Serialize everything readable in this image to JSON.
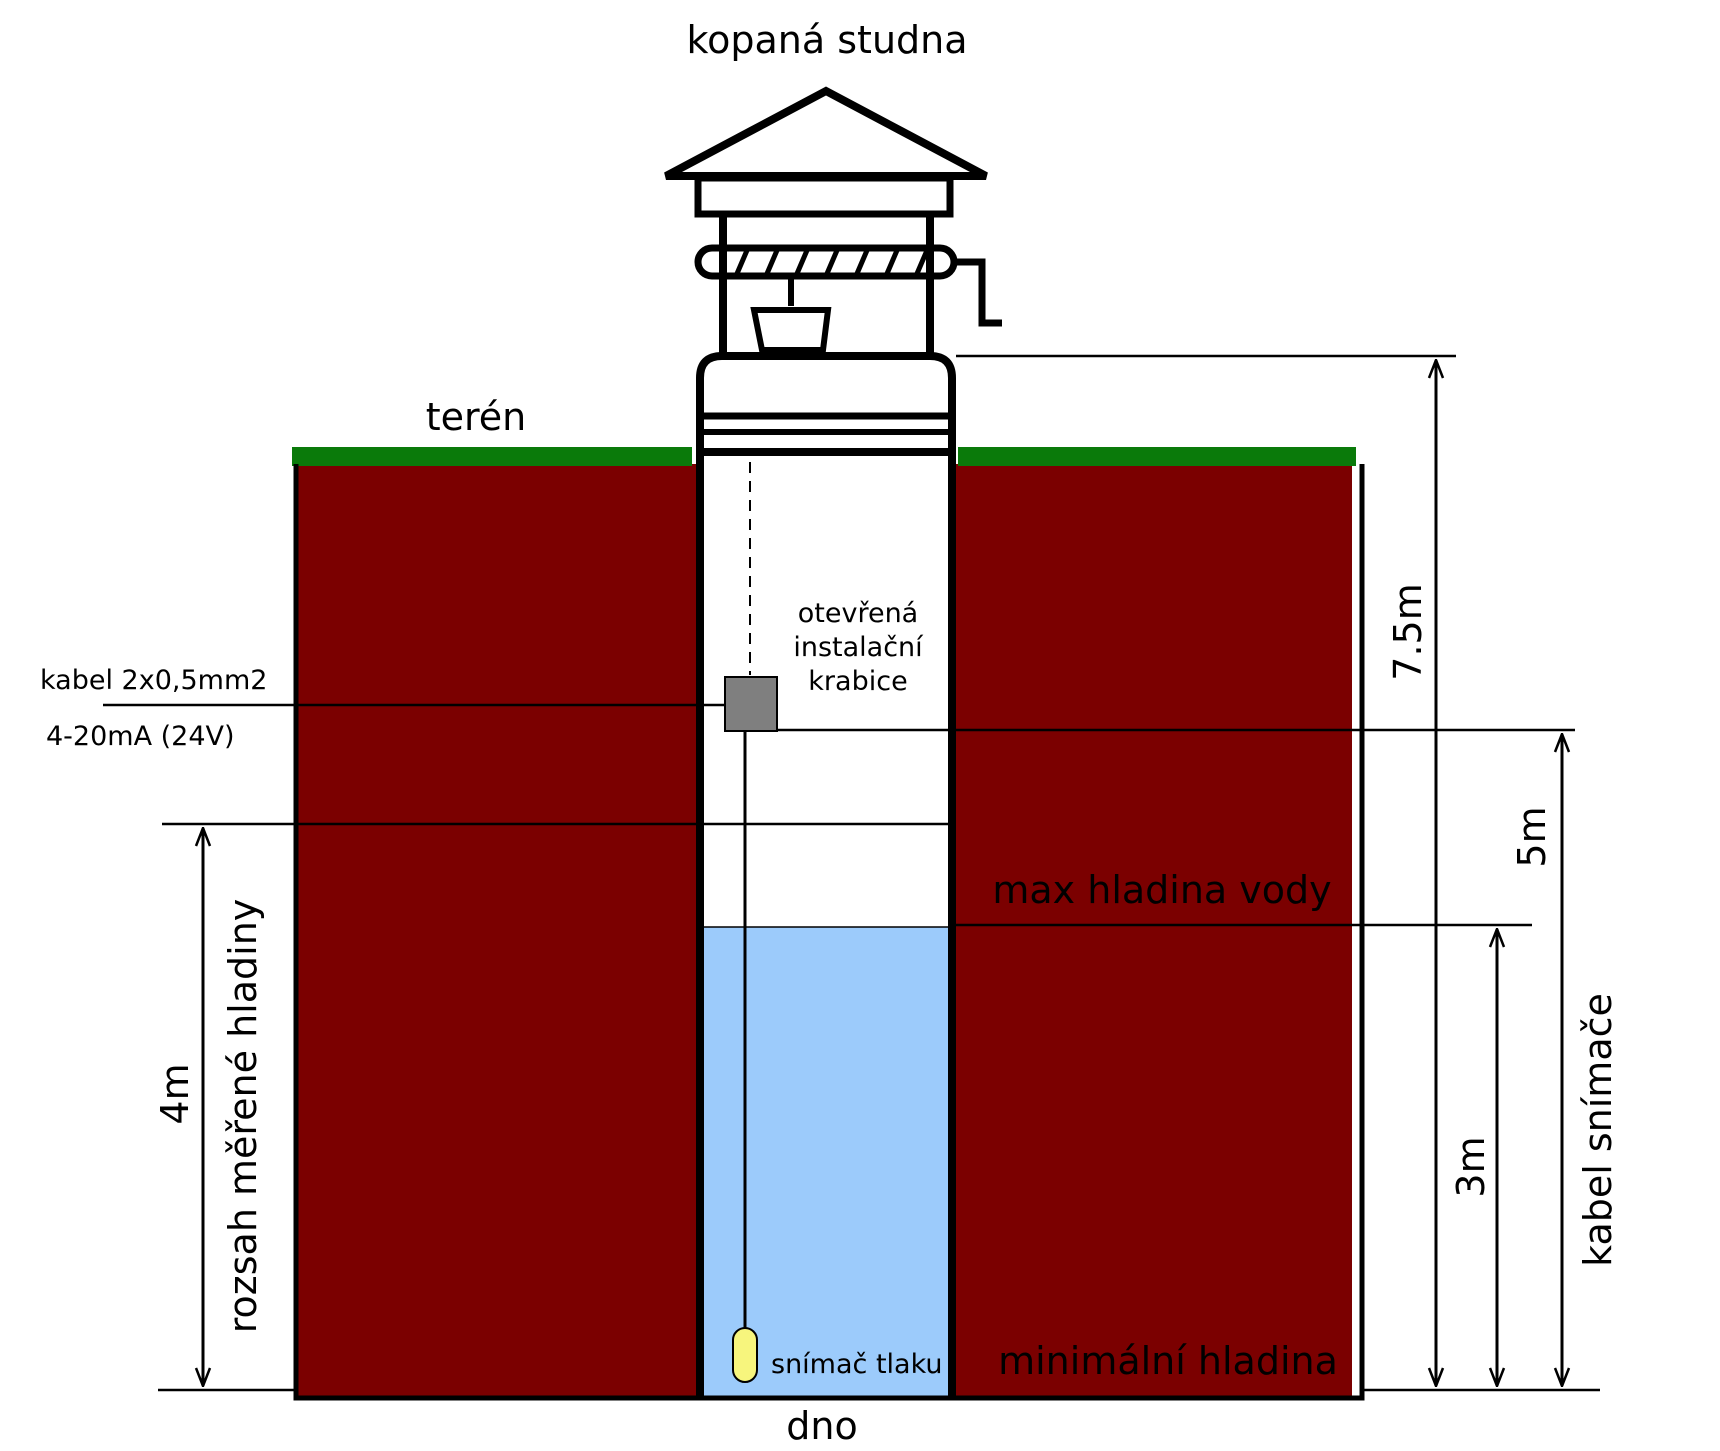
{
  "title": "kopaná studna",
  "labels": {
    "terrain": "terén",
    "bottom": "dno",
    "max_level": "max hladina vody",
    "min_level": "minimální hladina",
    "sensor": "snímač tlaku",
    "box_line1": "otevřená",
    "box_line2": "instalační",
    "box_line3": "krabice",
    "cable_line1": "kabel 2x0,5mm2",
    "cable_line2": "4-20mA (24V)",
    "range_label": "rozsah měřené hladiny",
    "range_value": "4m",
    "total_depth": "7.5m",
    "cable_length": "5m",
    "water_depth": "3m",
    "cable_label": "kabel snímače"
  },
  "colors": {
    "soil": "#7b0000",
    "grass": "#0a7a0a",
    "water": "#9ccbfb",
    "box": "#7f7f7f",
    "sensor": "#f7f57d"
  }
}
